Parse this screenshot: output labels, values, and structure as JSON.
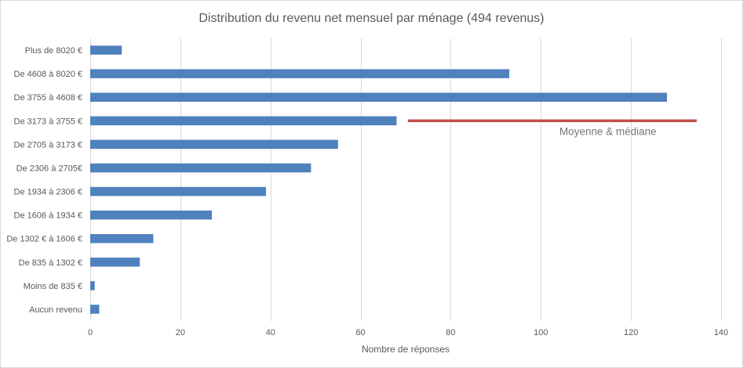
{
  "chart_data": {
    "type": "bar",
    "horizontal": true,
    "title": "Distribution du revenu net mensuel par ménage (494 revenus)",
    "xlabel": "Nombre de réponses",
    "categories": [
      "Plus de 8020 €",
      "De 4608 à 8020 €",
      "De 3755 à 4608 €",
      "De 3173 à 3755 €",
      "De 2705 à 3173 €",
      "De 2306 à 2705€",
      "De 1934 à 2306 €",
      "De 1606 à 1934 €",
      "De 1302 € à 1606 €",
      "De 835 à 1302 €",
      "Moins de 835 €",
      "Aucun revenu"
    ],
    "values": [
      7,
      93,
      128,
      68,
      55,
      49,
      39,
      27,
      14,
      11,
      1,
      2
    ],
    "xlim": [
      0,
      140
    ],
    "xticks": [
      0,
      20,
      40,
      60,
      80,
      100,
      120,
      140
    ],
    "grid": true,
    "bar_color": "#4f81bd",
    "annotation": {
      "text": "Moyenne & médiane",
      "category_index": 3,
      "color": "#c0504d"
    }
  }
}
